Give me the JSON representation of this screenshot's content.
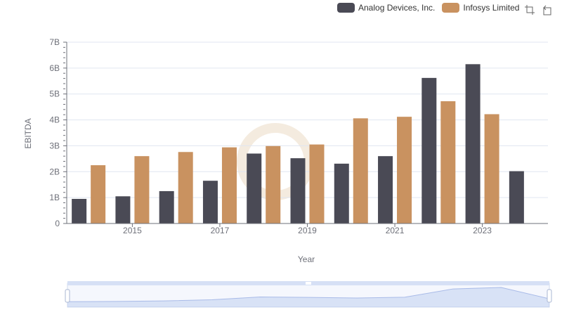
{
  "legend": {
    "items": [
      {
        "label": "Analog Devices, Inc.",
        "color": "#4a4a55"
      },
      {
        "label": "Infosys Limited",
        "color": "#c99260"
      }
    ]
  },
  "toolbox": {
    "icons": [
      "zoom-icon",
      "restore-icon"
    ]
  },
  "chart_data": {
    "type": "bar",
    "title": "",
    "xlabel": "Year",
    "ylabel": "EBITDA",
    "categories": [
      "2014",
      "2015",
      "2016",
      "2017",
      "2018",
      "2019",
      "2020",
      "2021",
      "2022",
      "2023",
      "2024"
    ],
    "x_tick_labels": [
      "2015",
      "2017",
      "2019",
      "2021",
      "2023"
    ],
    "y_tick_labels": [
      "0",
      "1B",
      "2B",
      "3B",
      "4B",
      "5B",
      "6B",
      "7B"
    ],
    "ylim": [
      0,
      7000000000
    ],
    "grid": true,
    "legend_position": "top-right",
    "series": [
      {
        "name": "Analog Devices, Inc.",
        "color": "#4a4a55",
        "values": [
          950000000,
          1050000000,
          1250000000,
          1650000000,
          2700000000,
          2520000000,
          2310000000,
          2600000000,
          5620000000,
          6150000000,
          2020000000
        ]
      },
      {
        "name": "Infosys Limited",
        "color": "#c99260",
        "values": [
          2250000000,
          2600000000,
          2760000000,
          2940000000,
          2990000000,
          3050000000,
          4060000000,
          4120000000,
          4720000000,
          4220000000,
          null
        ]
      }
    ],
    "data_zoom": {
      "start": 0,
      "end": 100
    }
  }
}
